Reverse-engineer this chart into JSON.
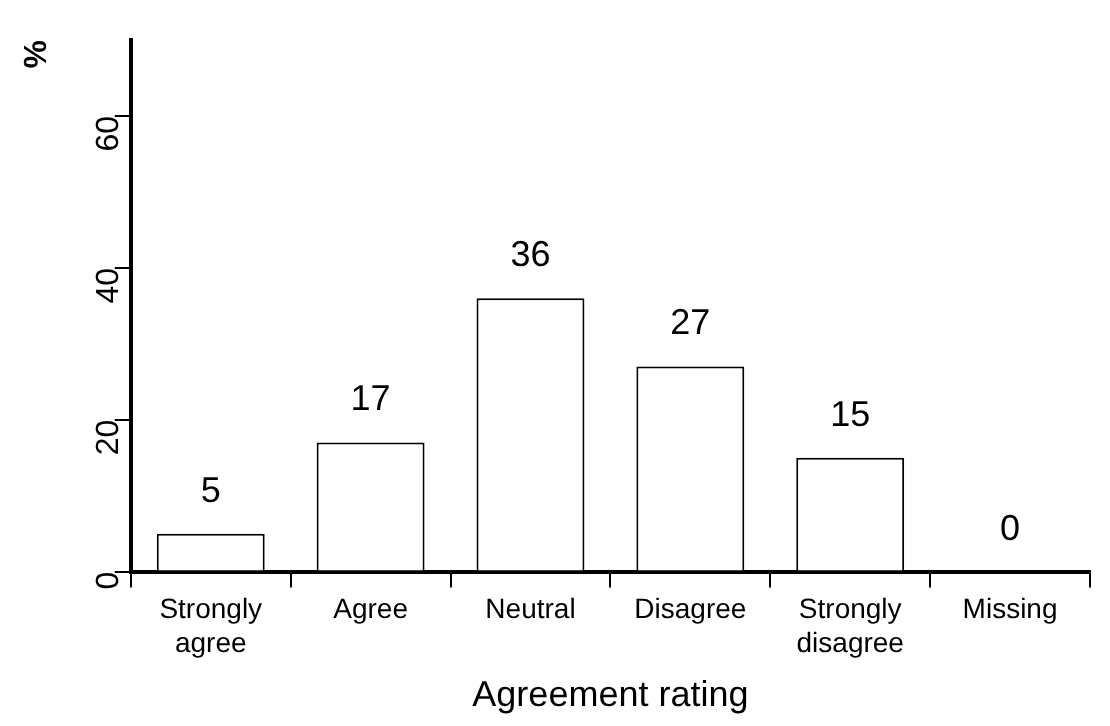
{
  "chart_data": {
    "type": "bar",
    "xlabel": "Agreement rating",
    "ylabel": "%",
    "categories": [
      "Strongly agree",
      "Agree",
      "Neutral",
      "Disagree",
      "Strongly disagree",
      "Missing"
    ],
    "values": [
      5,
      17,
      36,
      27,
      15,
      0
    ],
    "color": "#ffffff",
    "ylim": [
      0,
      70
    ],
    "yticks": [
      0,
      20,
      40,
      60
    ],
    "grid": false,
    "legend": false,
    "data_labels": true
  }
}
